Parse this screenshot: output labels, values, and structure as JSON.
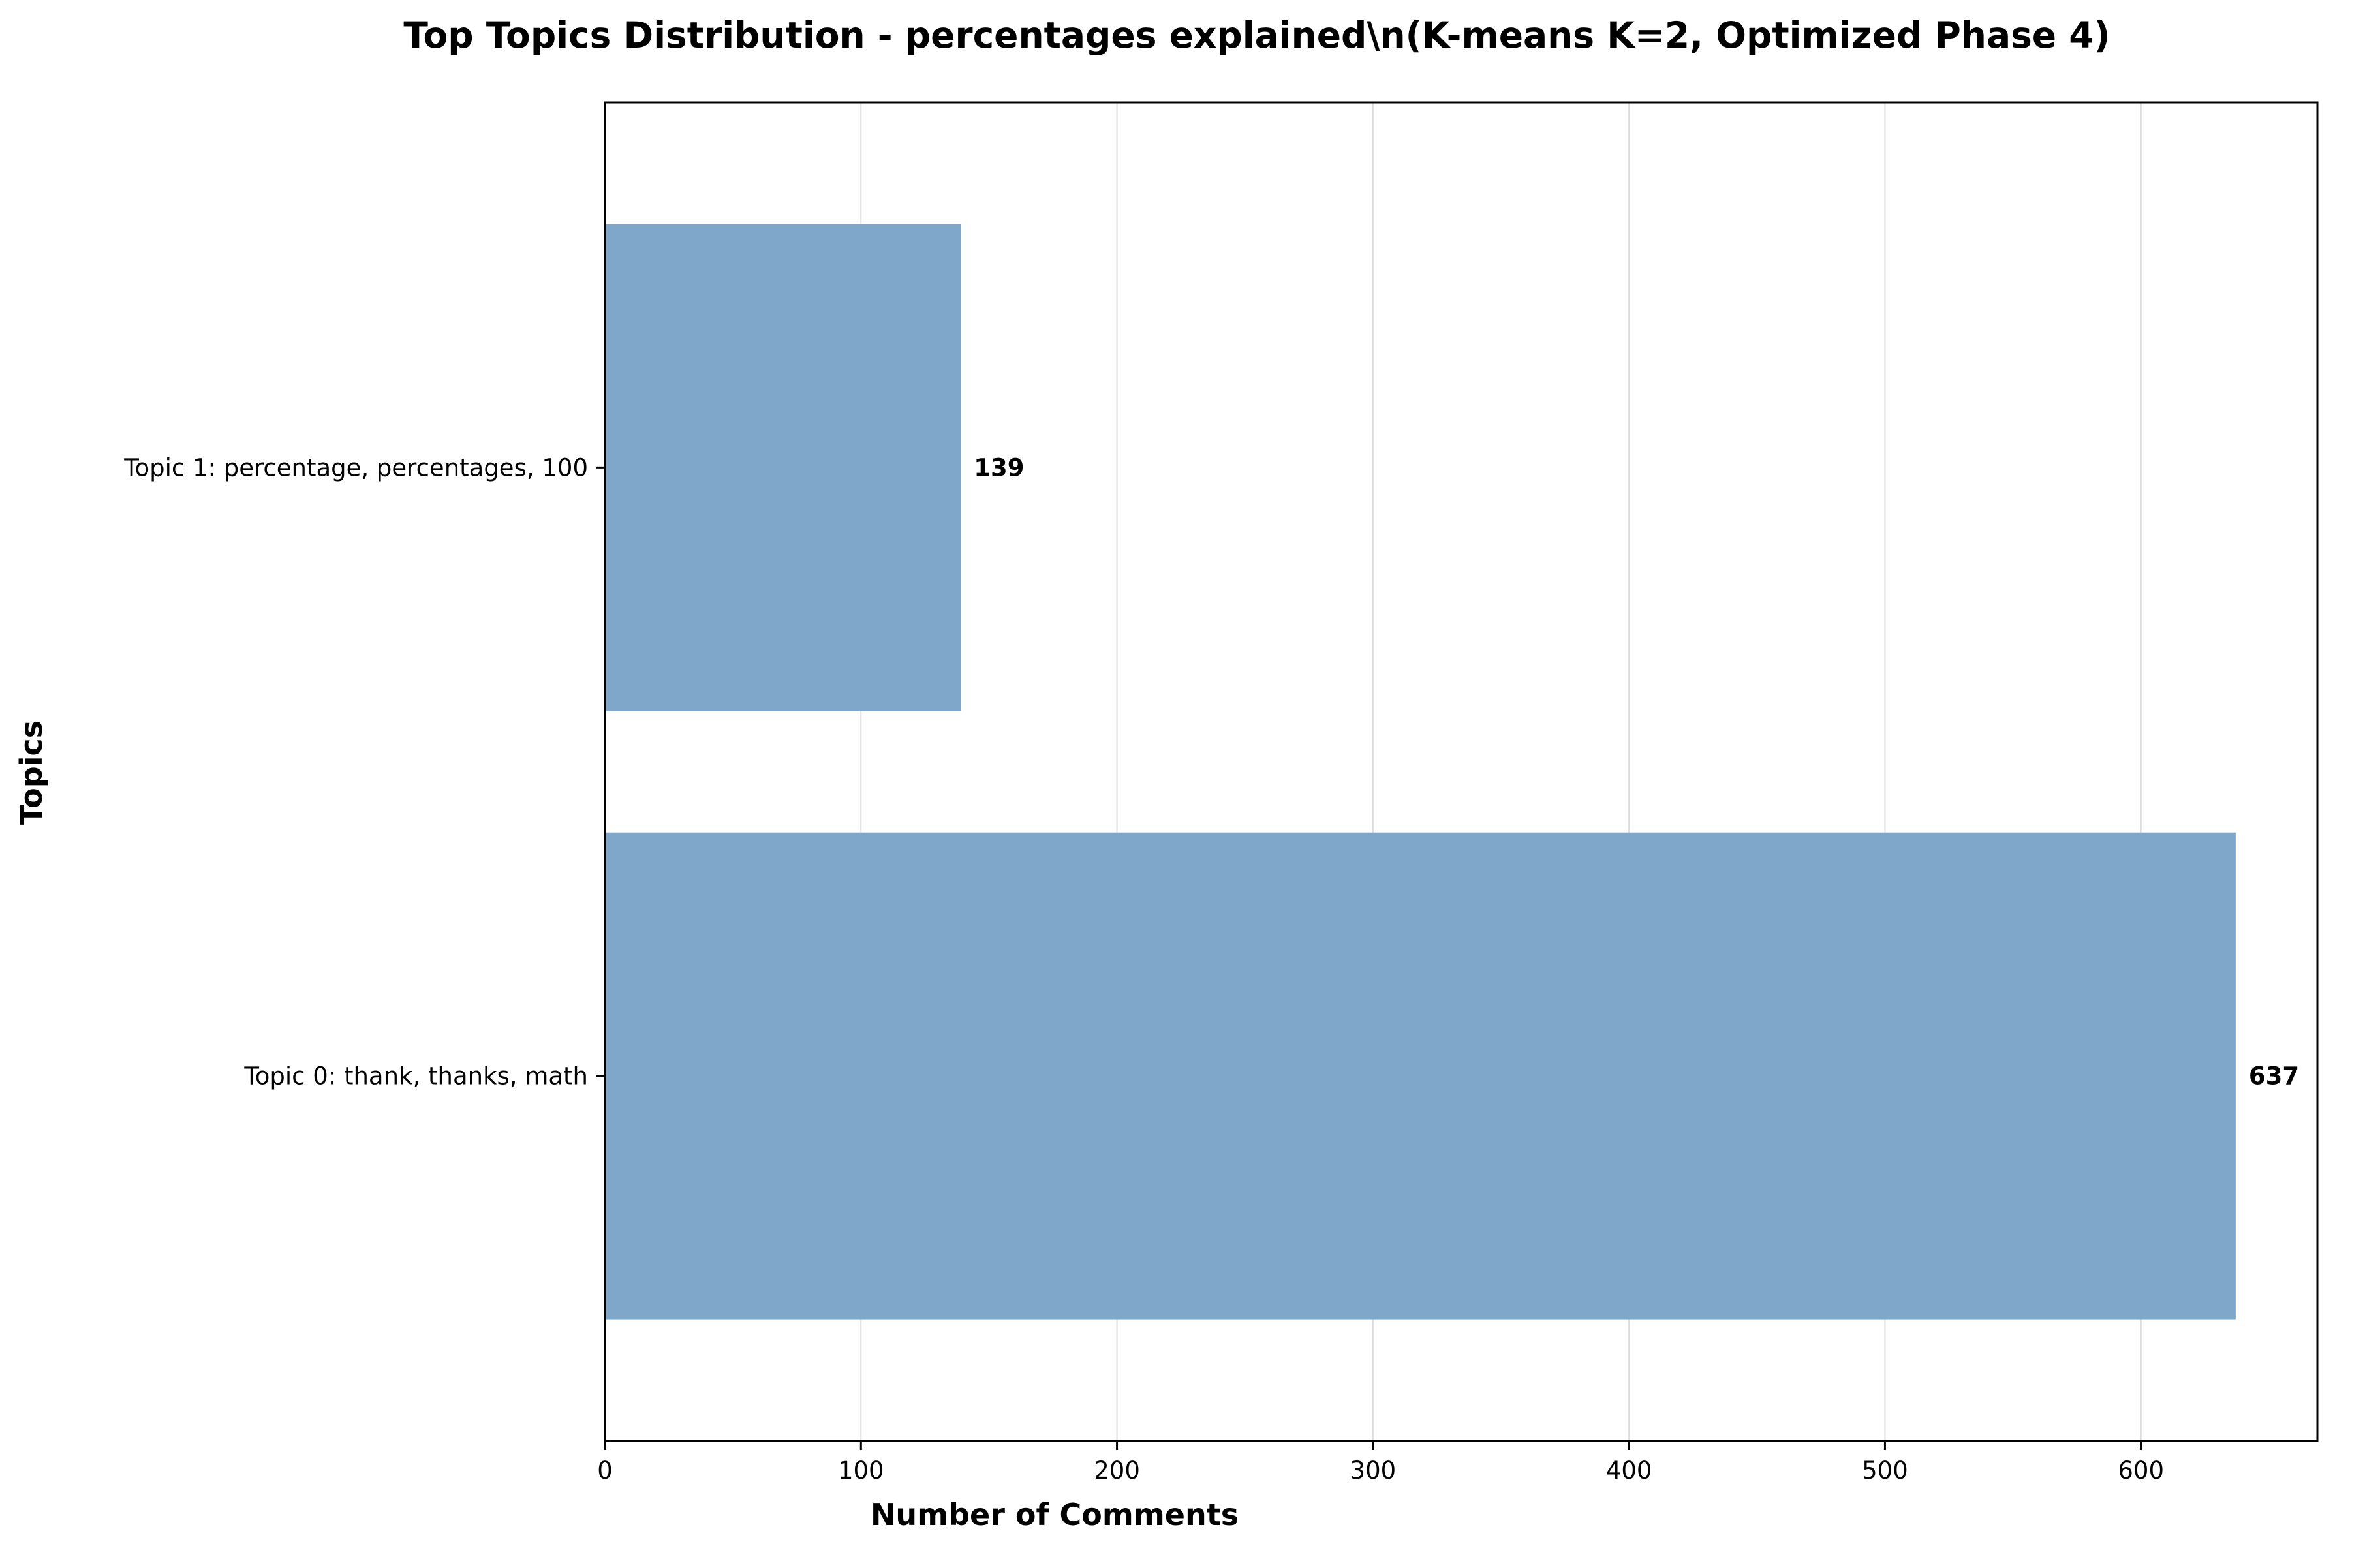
{
  "chart_data": {
    "type": "bar",
    "orientation": "horizontal",
    "title": "Top Topics Distribution - percentages explained\\n(K-means K=2, Optimized Phase 4)",
    "xlabel": "Number of Comments",
    "ylabel": "Topics",
    "categories": [
      "Topic 0: thank, thanks, math",
      "Topic 1: percentage, percentages, 100"
    ],
    "values": [
      637,
      139
    ],
    "xlim": [
      0,
      668.9
    ],
    "xticks": [
      0,
      100,
      200,
      300,
      400,
      500,
      600
    ],
    "grid": "x",
    "bar_color": "#7ea7ca"
  }
}
